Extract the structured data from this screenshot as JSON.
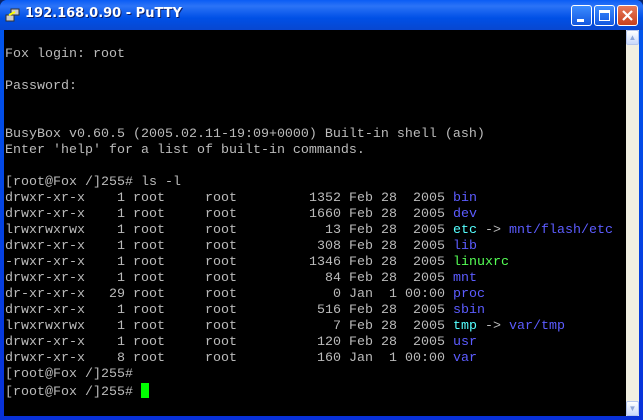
{
  "window": {
    "title": "192.168.0.90 - PuTTY",
    "buttons": [
      "minimize",
      "maximize",
      "close"
    ]
  },
  "colors": {
    "text": "#bbbbbb",
    "directory": "#5c5cff",
    "symlink": "#55ffff",
    "executable": "#55ff55",
    "cursor": "#00ff00"
  },
  "terminal": {
    "intro": [
      "",
      "Fox login: root",
      "",
      "Password:",
      "",
      "",
      "BusyBox v0.60.5 (2005.02.11-19:09+0000) Built-in shell (ash)",
      "Enter 'help' for a list of built-in commands.",
      ""
    ],
    "command": "[root@Fox /]255# ls -l",
    "listing": [
      {
        "perms": "drwxr-xr-x",
        "links": "1",
        "owner": "root",
        "group": "root",
        "size": "1352",
        "date": "Feb 28  2005",
        "name": "bin",
        "type": "dir"
      },
      {
        "perms": "drwxr-xr-x",
        "links": "1",
        "owner": "root",
        "group": "root",
        "size": "1660",
        "date": "Feb 28  2005",
        "name": "dev",
        "type": "dir"
      },
      {
        "perms": "lrwxrwxrwx",
        "links": "1",
        "owner": "root",
        "group": "root",
        "size": "13",
        "date": "Feb 28  2005",
        "name": "etc",
        "type": "lnk",
        "target": "mnt/flash/etc"
      },
      {
        "perms": "drwxr-xr-x",
        "links": "1",
        "owner": "root",
        "group": "root",
        "size": "308",
        "date": "Feb 28  2005",
        "name": "lib",
        "type": "dir"
      },
      {
        "perms": "-rwxr-xr-x",
        "links": "1",
        "owner": "root",
        "group": "root",
        "size": "1346",
        "date": "Feb 28  2005",
        "name": "linuxrc",
        "type": "exe"
      },
      {
        "perms": "drwxr-xr-x",
        "links": "1",
        "owner": "root",
        "group": "root",
        "size": "84",
        "date": "Feb 28  2005",
        "name": "mnt",
        "type": "dir"
      },
      {
        "perms": "dr-xr-xr-x",
        "links": "29",
        "owner": "root",
        "group": "root",
        "size": "0",
        "date": "Jan  1 00:00",
        "name": "proc",
        "type": "dir"
      },
      {
        "perms": "drwxr-xr-x",
        "links": "1",
        "owner": "root",
        "group": "root",
        "size": "516",
        "date": "Feb 28  2005",
        "name": "sbin",
        "type": "dir"
      },
      {
        "perms": "lrwxrwxrwx",
        "links": "1",
        "owner": "root",
        "group": "root",
        "size": "7",
        "date": "Feb 28  2005",
        "name": "tmp",
        "type": "lnk",
        "target": "var/tmp"
      },
      {
        "perms": "drwxr-xr-x",
        "links": "1",
        "owner": "root",
        "group": "root",
        "size": "120",
        "date": "Feb 28  2005",
        "name": "usr",
        "type": "dir"
      },
      {
        "perms": "drwxr-xr-x",
        "links": "8",
        "owner": "root",
        "group": "root",
        "size": "160",
        "date": "Jan  1 00:00",
        "name": "var",
        "type": "dir"
      }
    ],
    "prompts": [
      "[root@Fox /]255#",
      "[root@Fox /]255# "
    ]
  }
}
